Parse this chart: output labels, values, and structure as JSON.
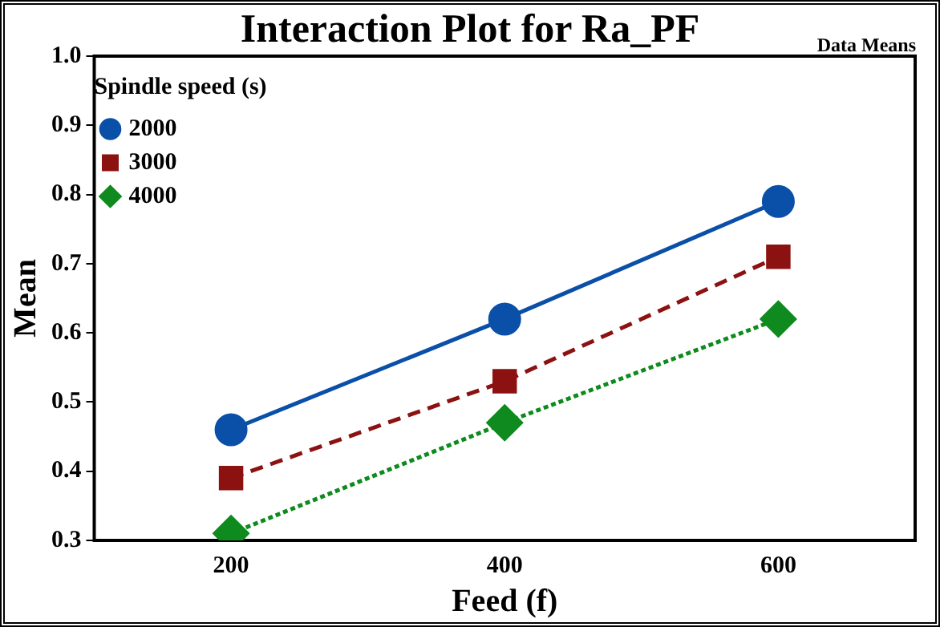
{
  "chart_data": {
    "type": "line",
    "title": "Interaction Plot for Ra_PF",
    "annotations": [
      "Data Means"
    ],
    "xlabel": "Feed (f)",
    "ylabel": "Mean",
    "legend_title": "Spindle speed (s)",
    "legend": "top left",
    "grid": false,
    "categories": [
      "200",
      "400",
      "600"
    ],
    "ylim": [
      0.3,
      1.0
    ],
    "yticks": [
      {
        "value": 0.3,
        "label": "0.3"
      },
      {
        "value": 0.4,
        "label": "0.4"
      },
      {
        "value": 0.5,
        "label": "0.5"
      },
      {
        "value": 0.6,
        "label": "0.6"
      },
      {
        "value": 0.7,
        "label": "0.7"
      },
      {
        "value": 0.8,
        "label": "0.8"
      },
      {
        "value": 0.9,
        "label": "0.9"
      },
      {
        "value": 1.0,
        "label": "1.0"
      }
    ],
    "series": [
      {
        "name": "2000",
        "color": "#0a4fa8",
        "marker": "circle",
        "line_style": "solid",
        "values": [
          0.46,
          0.62,
          0.79
        ]
      },
      {
        "name": "3000",
        "color": "#8c1212",
        "marker": "square",
        "line_style": "dashed",
        "values": [
          0.39,
          0.53,
          0.71
        ]
      },
      {
        "name": "4000",
        "color": "#0e8a1e",
        "marker": "diamond",
        "line_style": "dotted",
        "values": [
          0.31,
          0.47,
          0.62
        ]
      }
    ]
  }
}
